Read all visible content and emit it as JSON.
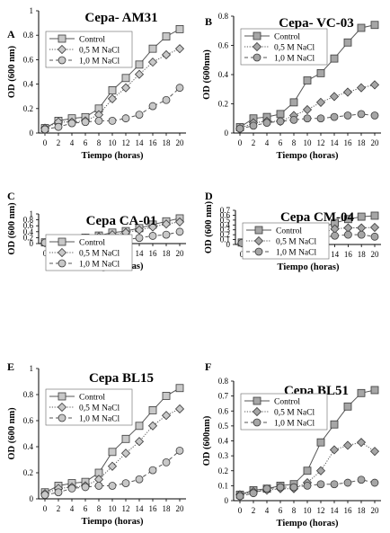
{
  "chart_data": [
    {
      "type": "line",
      "panel_letter": "A",
      "title": "Cepa- AM31",
      "xlabel": "Tiempo (horas)",
      "ylabel": "OD (600 nm)",
      "x": [
        0,
        2,
        4,
        6,
        8,
        10,
        12,
        14,
        16,
        18,
        20
      ],
      "ylim": [
        0,
        1
      ],
      "yticks": [
        0,
        0.2,
        0.4,
        0.6,
        0.8,
        1
      ],
      "legend_position": "top-left",
      "grid": false,
      "series": [
        {
          "name": "Control",
          "values": [
            0.04,
            0.1,
            0.12,
            0.13,
            0.2,
            0.35,
            0.45,
            0.56,
            0.69,
            0.79,
            0.85
          ],
          "marker": "square",
          "line": "solid",
          "fill": "#c8c8c8"
        },
        {
          "name": "0,5 M NaCl",
          "values": [
            0.04,
            0.09,
            0.09,
            0.1,
            0.15,
            0.28,
            0.37,
            0.48,
            0.58,
            0.64,
            0.69
          ],
          "marker": "diamond",
          "line": "dotted",
          "fill": "#c8c8c8"
        },
        {
          "name": "1,0 M NaCl",
          "values": [
            0.03,
            0.05,
            0.08,
            0.09,
            0.1,
            0.1,
            0.12,
            0.15,
            0.22,
            0.27,
            0.37
          ],
          "marker": "circle",
          "line": "dashed",
          "fill": "#c8c8c8"
        }
      ]
    },
    {
      "type": "line",
      "panel_letter": "B",
      "title": "Cepa- VC-03",
      "xlabel": "Tiempo (horas)",
      "ylabel": "OD (600nm)",
      "x": [
        0,
        2,
        4,
        6,
        8,
        10,
        12,
        14,
        16,
        18,
        20
      ],
      "ylim": [
        0,
        0.8
      ],
      "yticks": [
        0,
        0.2,
        0.4,
        0.6,
        0.8
      ],
      "legend_position": "top-left",
      "grid": false,
      "series": [
        {
          "name": "Control",
          "values": [
            0.04,
            0.1,
            0.11,
            0.13,
            0.21,
            0.36,
            0.41,
            0.51,
            0.62,
            0.72,
            0.74
          ],
          "marker": "square",
          "line": "solid",
          "fill": "#a6a6a6"
        },
        {
          "name": "0,5 M NaCl",
          "values": [
            0.03,
            0.07,
            0.08,
            0.08,
            0.12,
            0.16,
            0.21,
            0.25,
            0.28,
            0.31,
            0.33
          ],
          "marker": "diamond",
          "line": "dotted",
          "fill": "#a6a6a6"
        },
        {
          "name": "1,0 M NaCl",
          "values": [
            0.03,
            0.05,
            0.07,
            0.08,
            0.09,
            0.1,
            0.1,
            0.11,
            0.12,
            0.13,
            0.12
          ],
          "marker": "circle",
          "line": "dashed",
          "fill": "#a6a6a6"
        }
      ]
    },
    {
      "type": "line",
      "panel_letter": "C",
      "title": "Cepa CA-01",
      "xlabel": "Tiempo (horas)",
      "ylabel": "OD (600 nm)",
      "x": [
        0,
        2,
        4,
        6,
        8,
        10,
        12,
        14,
        16,
        18,
        20
      ],
      "ylim": [
        0,
        1
      ],
      "yticks": [
        0,
        0.2,
        0.4,
        0.6,
        0.8,
        1
      ],
      "legend_position": "top-left",
      "grid": false,
      "series": [
        {
          "name": "Control",
          "values": [
            0.04,
            0.13,
            0.16,
            0.2,
            0.27,
            0.37,
            0.42,
            0.52,
            0.64,
            0.75,
            0.85
          ],
          "marker": "square",
          "line": "solid",
          "fill": "#c8c8c8"
        },
        {
          "name": "0,5 M NaCl",
          "values": [
            0.03,
            0.08,
            0.13,
            0.18,
            0.23,
            0.3,
            0.37,
            0.46,
            0.56,
            0.66,
            0.73
          ],
          "marker": "diamond",
          "line": "dotted",
          "fill": "#c8c8c8"
        },
        {
          "name": "1,0 M NaCl",
          "values": [
            0.03,
            0.05,
            0.07,
            0.09,
            0.12,
            0.13,
            0.13,
            0.19,
            0.26,
            0.3,
            0.4
          ],
          "marker": "circle",
          "line": "dashed",
          "fill": "#c8c8c8"
        }
      ]
    },
    {
      "type": "line",
      "panel_letter": "D",
      "title": "Cepa CM-04",
      "xlabel": "Tiempo (horas)",
      "ylabel": "OD (600 nm)",
      "x": [
        0,
        2,
        4,
        6,
        8,
        10,
        12,
        14,
        16,
        18,
        20
      ],
      "ylim": [
        0,
        0.7
      ],
      "yticks": [
        0,
        0.1,
        0.2,
        0.3,
        0.4,
        0.5,
        0.6,
        0.7
      ],
      "legend_position": "top-left",
      "grid": false,
      "series": [
        {
          "name": "Control",
          "values": [
            0.04,
            0.1,
            0.11,
            0.12,
            0.16,
            0.28,
            0.35,
            0.44,
            0.52,
            0.57,
            0.59
          ],
          "marker": "square",
          "line": "solid",
          "fill": "#a6a6a6"
        },
        {
          "name": "0,5 M NaCl",
          "values": [
            0.03,
            0.08,
            0.09,
            0.1,
            0.11,
            0.17,
            0.24,
            0.32,
            0.34,
            0.34,
            0.35
          ],
          "marker": "diamond",
          "line": "dotted",
          "fill": "#a6a6a6"
        },
        {
          "name": "1,0 M NaCl",
          "values": [
            0.03,
            0.05,
            0.08,
            0.09,
            0.1,
            0.11,
            0.14,
            0.18,
            0.2,
            0.2,
            0.16
          ],
          "marker": "circle",
          "line": "dashed",
          "fill": "#a6a6a6"
        }
      ]
    },
    {
      "type": "line",
      "panel_letter": "E",
      "title": "Cepa BL15",
      "xlabel": "Tiempo (horas)",
      "ylabel": "OD (600 nm)",
      "x": [
        0,
        2,
        4,
        6,
        8,
        10,
        12,
        14,
        16,
        18,
        20
      ],
      "ylim": [
        0,
        1
      ],
      "yticks": [
        0,
        0.2,
        0.4,
        0.6,
        0.8,
        1
      ],
      "legend_position": "top-left",
      "grid": false,
      "series": [
        {
          "name": "Control",
          "values": [
            0.05,
            0.1,
            0.12,
            0.13,
            0.2,
            0.36,
            0.46,
            0.56,
            0.68,
            0.79,
            0.85
          ],
          "marker": "square",
          "line": "solid",
          "fill": "#c8c8c8"
        },
        {
          "name": "0,5 M NaCl",
          "values": [
            0.04,
            0.08,
            0.09,
            0.1,
            0.15,
            0.25,
            0.35,
            0.44,
            0.56,
            0.64,
            0.69
          ],
          "marker": "diamond",
          "line": "dotted",
          "fill": "#c8c8c8"
        },
        {
          "name": "1,0 M NaCl",
          "values": [
            0.03,
            0.05,
            0.08,
            0.09,
            0.1,
            0.1,
            0.12,
            0.15,
            0.22,
            0.28,
            0.37
          ],
          "marker": "circle",
          "line": "dashed",
          "fill": "#c8c8c8"
        }
      ]
    },
    {
      "type": "line",
      "panel_letter": "F",
      "title": "Cepa BL51",
      "xlabel": "Tiempo (horas)",
      "ylabel": "OD (600nm)",
      "x": [
        0,
        2,
        4,
        6,
        8,
        10,
        12,
        14,
        16,
        18,
        20
      ],
      "ylim": [
        0,
        0.8
      ],
      "yticks": [
        0,
        0.1,
        0.2,
        0.3,
        0.4,
        0.5,
        0.6,
        0.7,
        0.8
      ],
      "legend_position": "top-left",
      "grid": false,
      "series": [
        {
          "name": "Control",
          "values": [
            0.04,
            0.07,
            0.08,
            0.1,
            0.11,
            0.2,
            0.39,
            0.51,
            0.63,
            0.72,
            0.74
          ],
          "marker": "square",
          "line": "solid",
          "fill": "#a6a6a6"
        },
        {
          "name": "0,5 M NaCl",
          "values": [
            0.04,
            0.06,
            0.07,
            0.08,
            0.08,
            0.12,
            0.2,
            0.34,
            0.37,
            0.39,
            0.33
          ],
          "marker": "diamond",
          "line": "dotted",
          "fill": "#a6a6a6"
        },
        {
          "name": "1,0 M NaCl",
          "values": [
            0.03,
            0.05,
            0.08,
            0.09,
            0.09,
            0.1,
            0.11,
            0.11,
            0.12,
            0.14,
            0.12
          ],
          "marker": "circle",
          "line": "dashed",
          "fill": "#a6a6a6"
        }
      ]
    }
  ]
}
